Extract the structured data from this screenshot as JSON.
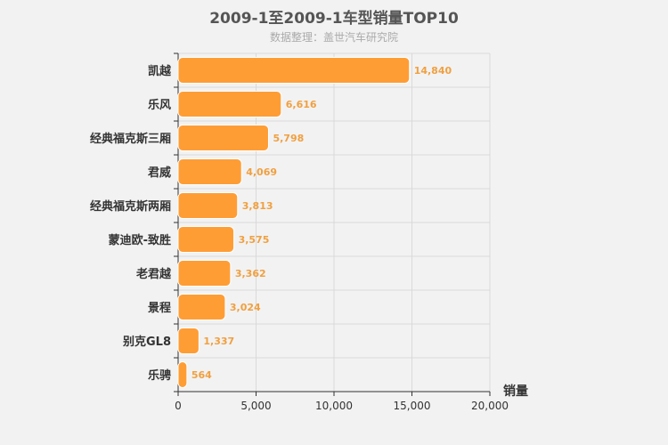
{
  "chart_data": {
    "type": "bar",
    "orientation": "horizontal",
    "title": "2009-1至2009-1车型销量TOP10",
    "subtitle": "数据整理：盖世汽车研究院",
    "xlabel": "销量",
    "categories": [
      "凯越",
      "乐风",
      "经典福克斯三厢",
      "君威",
      "经典福克斯两厢",
      "蒙迪欧-致胜",
      "老君越",
      "景程",
      "别克GL8",
      "乐骋"
    ],
    "values": [
      14840,
      6616,
      5798,
      4069,
      3813,
      3575,
      3362,
      3024,
      1337,
      564
    ],
    "value_labels": [
      "14,840",
      "6,616",
      "5,798",
      "4,069",
      "3,813",
      "3,575",
      "3,362",
      "3,024",
      "1,337",
      "564"
    ],
    "xlim": [
      0,
      20000
    ],
    "ticks": [
      0,
      5000,
      10000,
      15000,
      20000
    ],
    "tick_labels": [
      "0",
      "5,000",
      "10,000",
      "15,000",
      "20,000"
    ],
    "grid": true,
    "bar_color": "#ff9d35",
    "label_color": "#f0a040"
  }
}
